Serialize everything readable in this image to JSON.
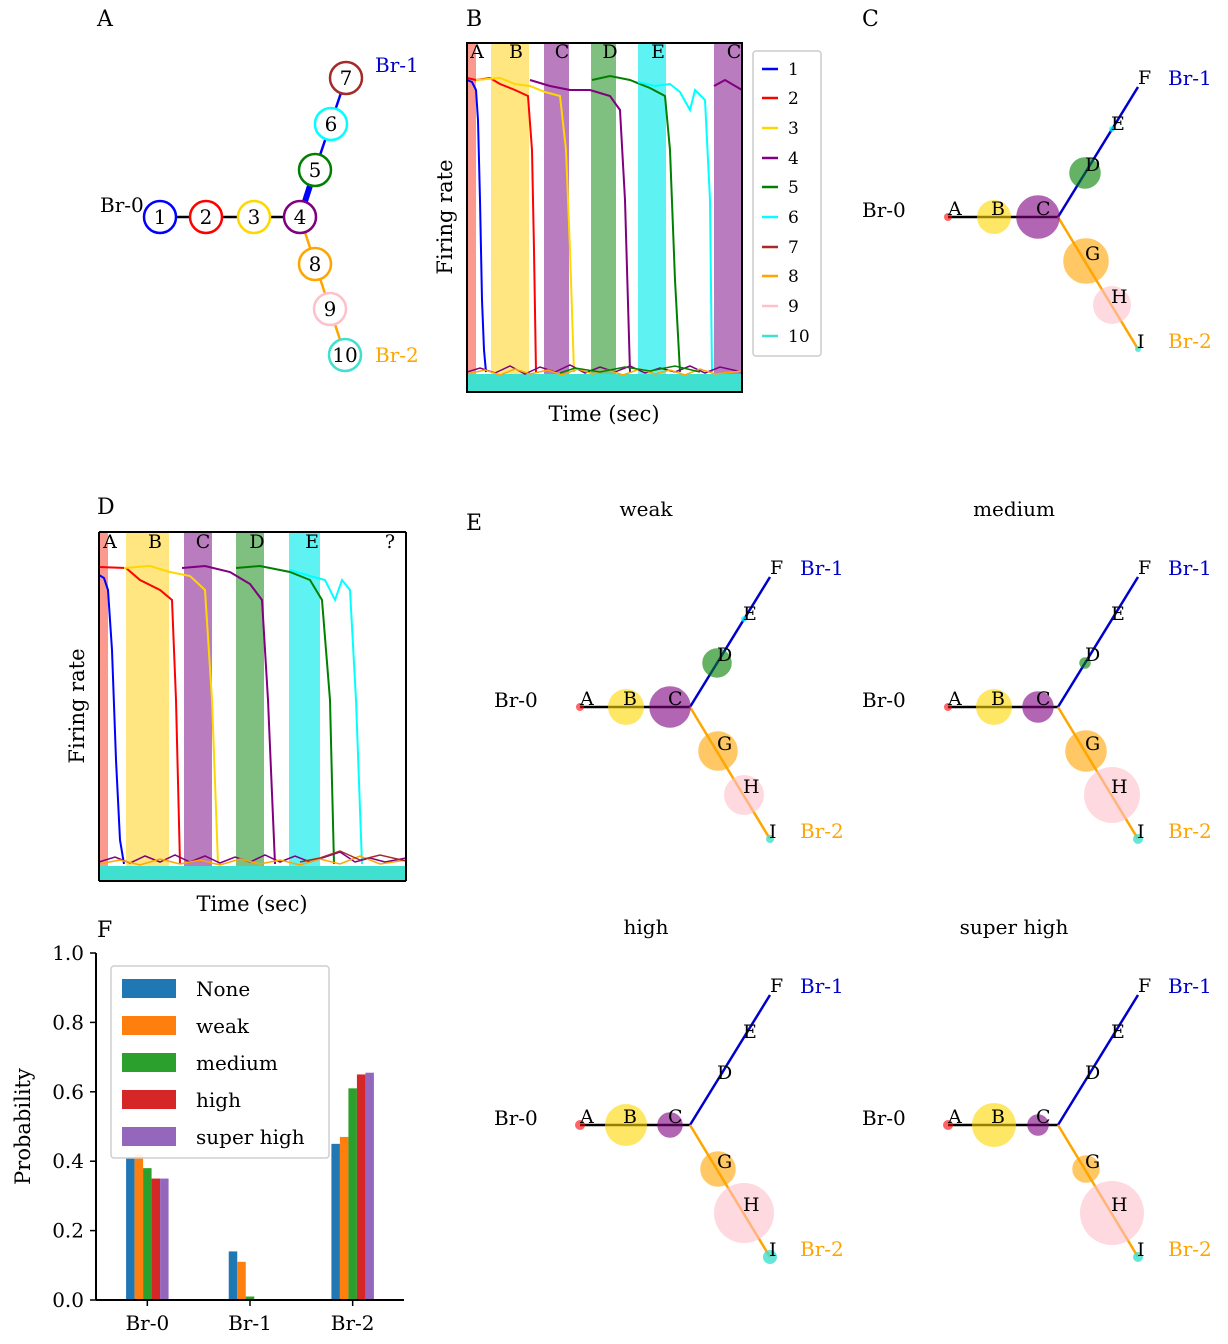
{
  "panels": {
    "A": {
      "letter": "A",
      "branch_labels": {
        "br0": "Br-0",
        "br1": "Br-1",
        "br2": "Br-2"
      },
      "nodes": [
        "1",
        "2",
        "3",
        "4",
        "5",
        "6",
        "7",
        "8",
        "9",
        "10"
      ]
    },
    "B": {
      "letter": "B",
      "ylabel": "Firing rate",
      "xlabel": "Time (sec)",
      "band_labels": [
        "A",
        "B",
        "C",
        "D",
        "E",
        "C"
      ],
      "legend": [
        "1",
        "2",
        "3",
        "4",
        "5",
        "6",
        "7",
        "8",
        "9",
        "10"
      ]
    },
    "C": {
      "letter": "C",
      "labels": [
        "A",
        "B",
        "C",
        "D",
        "E",
        "F",
        "G",
        "H",
        "I"
      ],
      "branch_labels": {
        "br0": "Br-0",
        "br1": "Br-1",
        "br2": "Br-2"
      }
    },
    "D": {
      "letter": "D",
      "ylabel": "Firing rate",
      "xlabel": "Time (sec)",
      "band_labels": [
        "A",
        "B",
        "C",
        "D",
        "E",
        "?"
      ]
    },
    "E": {
      "letter": "E",
      "titles": [
        "weak",
        "medium",
        "high",
        "super high"
      ]
    },
    "F": {
      "letter": "F"
    }
  },
  "colors": {
    "n1": "#0000ff",
    "n2": "#ff0000",
    "n3": "#ffd700",
    "n4": "#800080",
    "n5": "#008000",
    "n6": "#00ffff",
    "n7": "#a52a2a",
    "n8": "#ffa500",
    "n9": "#ffc0cb",
    "n10": "#40e0d0",
    "br1": "#0000cc",
    "br2": "#ffa500"
  },
  "chart_data": {
    "type": "bar",
    "categories": [
      "Br-0",
      "Br-1",
      "Br-2"
    ],
    "series": [
      {
        "name": "None",
        "values": [
          0.41,
          0.14,
          0.45
        ],
        "color": "#1f77b4"
      },
      {
        "name": "weak",
        "values": [
          0.42,
          0.11,
          0.47
        ],
        "color": "#ff7f0e"
      },
      {
        "name": "medium",
        "values": [
          0.38,
          0.01,
          0.61
        ],
        "color": "#2ca02c"
      },
      {
        "name": "high",
        "values": [
          0.35,
          0.0,
          0.65
        ],
        "color": "#d62728"
      },
      {
        "name": "super high",
        "values": [
          0.35,
          0.0,
          0.655
        ],
        "color": "#9467bd"
      }
    ],
    "ylabel": "Probability",
    "ylim": [
      0,
      1.0
    ],
    "yticks": [
      "0.0",
      "0.2",
      "0.4",
      "0.6",
      "0.8",
      "1.0"
    ],
    "legend_position": "upper-left"
  }
}
